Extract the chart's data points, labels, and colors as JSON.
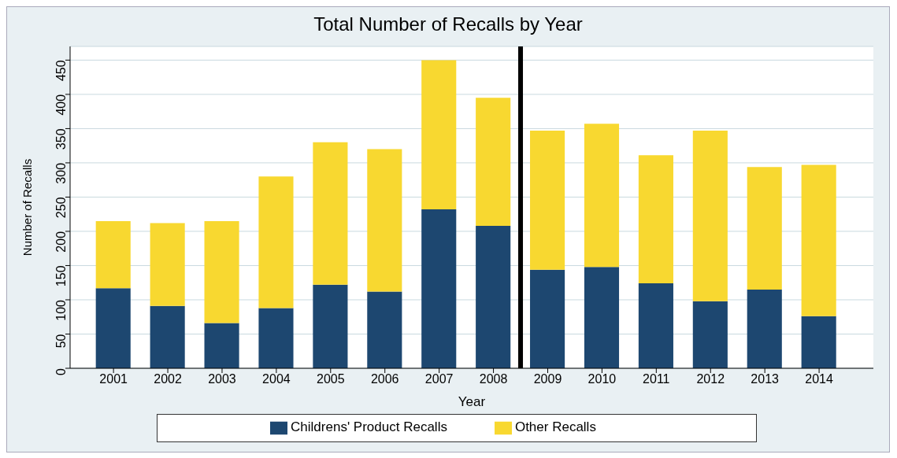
{
  "chart_data": {
    "type": "bar",
    "title": "Total Number of Recalls by Year",
    "xlabel": "Year",
    "ylabel": "Number of Recalls",
    "x": [
      2001,
      2002,
      2003,
      2004,
      2005,
      2006,
      2007,
      2008,
      2009,
      2010,
      2011,
      2012,
      2013,
      2014
    ],
    "xlim": [
      2000.2,
      2015
    ],
    "xticks": [
      2001,
      2002,
      2003,
      2004,
      2005,
      2006,
      2007,
      2008,
      2009,
      2010,
      2011,
      2012,
      2013,
      2014
    ],
    "ylim": [
      0,
      470
    ],
    "yticks": [
      0,
      50,
      100,
      150,
      200,
      250,
      300,
      350,
      400,
      450
    ],
    "stacked": true,
    "grid": "y",
    "legend": "bottom",
    "series": [
      {
        "name": "Childrens' Product Recalls",
        "color": "#1d4770",
        "values": [
          117,
          91,
          66,
          88,
          122,
          112,
          232,
          208,
          144,
          148,
          124,
          98,
          115,
          76
        ]
      },
      {
        "name": "Other Recalls",
        "color": "#f8d830",
        "values": [
          98,
          121,
          149,
          192,
          208,
          208,
          218,
          187,
          203,
          209,
          187,
          249,
          179,
          221
        ]
      }
    ],
    "ref_lines": [
      {
        "axis": "x",
        "value": 2008.5,
        "color": "#000000"
      }
    ]
  }
}
